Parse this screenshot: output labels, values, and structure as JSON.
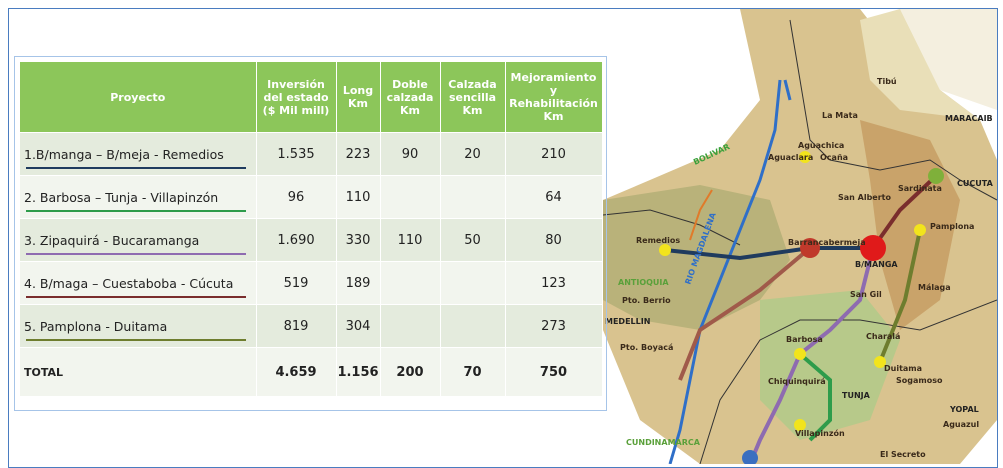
{
  "table": {
    "header": [
      "Proyecto",
      "Inversión del estado ($ Mil mill)",
      "Long Km",
      "Doble calzada Km",
      "Calzada sencilla Km",
      "Mejoramiento y Rehabilitación Km"
    ],
    "rows": [
      {
        "cells": [
          "1.B/manga – B/meja -  Remedios",
          "1.535",
          "223",
          "90",
          "20",
          "210"
        ],
        "line_color": "#1f3b5e"
      },
      {
        "cells": [
          "2. Barbosa – Tunja - Villapinzón",
          "96",
          "110",
          "",
          "",
          "64"
        ],
        "line_color": "#2e9c4b"
      },
      {
        "cells": [
          "3. Zipaquirá - Bucaramanga",
          "1.690",
          "330",
          "110",
          "50",
          "80"
        ],
        "line_color": "#8e6bb0"
      },
      {
        "cells": [
          "4. B/maga – Cuestaboba - Cúcuta",
          "519",
          "189",
          "",
          "",
          "123"
        ],
        "line_color": "#7a2d2d"
      },
      {
        "cells": [
          "5. Pamplona - Duitama",
          "819",
          "304",
          "",
          "",
          "273"
        ],
        "line_color": "#6e7d2e"
      }
    ],
    "total": [
      "TOTAL",
      "4.659",
      "1.156",
      "200",
      "70",
      "750"
    ]
  },
  "map": {
    "labels": [
      "Tibú",
      "MARACAIB",
      "La Mata",
      "Aguachica",
      "Aguaclara",
      "Ocaña",
      "Sardinata",
      "CUCUTA",
      "BOLIVAR",
      "San Alberto",
      "Pamplona",
      "Remedios",
      "RIO MAGDALENA",
      "Barrancabermeja",
      "B/MANGA",
      "ANTIOQUIA",
      "Málaga",
      "Pto. Berrio",
      "San Gil",
      "MEDELLIN",
      "Charalá",
      "Pto. Boyacá",
      "Barbosa",
      "Duitama",
      "Sogamoso",
      "Chiquinquirá",
      "TUNJA",
      "YOPAL",
      "Aguazul",
      "Villapinzón",
      "CUNDINAMARCA",
      "El Secreto"
    ]
  }
}
